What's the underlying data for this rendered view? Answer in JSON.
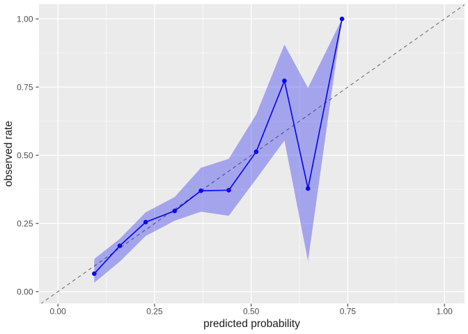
{
  "figure": {
    "kind": "ggplot-calibration-plot",
    "title": ""
  },
  "chart_data": {
    "type": "line",
    "title": "",
    "xlabel": "predicted probability",
    "ylabel": "observed rate",
    "xlim": [
      -0.049,
      1.052
    ],
    "ylim": [
      -0.043,
      1.054
    ],
    "x_tick_values": [
      0,
      0.25,
      0.5,
      0.75,
      1.0
    ],
    "x_tick_labels": [
      "0.00",
      "0.25",
      "0.50",
      "0.75",
      "1.00"
    ],
    "y_tick_values": [
      0,
      0.25,
      0.5,
      0.75,
      1.0
    ],
    "y_tick_labels": [
      "0.00",
      "0.25",
      "0.50",
      "0.75",
      "1.00"
    ],
    "grid": {
      "major": true,
      "minor": true,
      "legend": "none"
    },
    "reference_line": {
      "slope": 1,
      "intercept": 0,
      "style": "dashed"
    },
    "series": [
      {
        "name": "observed rate vs predicted probability",
        "x": [
          0.094,
          0.16,
          0.227,
          0.302,
          0.37,
          0.442,
          0.513,
          0.586,
          0.647,
          0.735
        ],
        "y": [
          0.066,
          0.168,
          0.255,
          0.296,
          0.37,
          0.372,
          0.513,
          0.773,
          0.378,
          1.0
        ],
        "ci_lower": [
          0.033,
          0.11,
          0.204,
          0.26,
          0.293,
          0.278,
          0.413,
          0.554,
          0.112,
          1.0
        ],
        "ci_upper": [
          0.12,
          0.194,
          0.291,
          0.347,
          0.454,
          0.487,
          0.65,
          0.906,
          0.747,
          1.0
        ]
      }
    ],
    "style": {
      "panel_bg": "#EBEBEB",
      "grid_color": "#FFFFFF",
      "line_color": "#0A0AEF",
      "point_color": "#0A0AEF",
      "ribbon_color": "rgba(0,0,238,0.30)",
      "reference_color": "#7C7C7C",
      "tick_label_color": "#4D4D4D",
      "axis_title_color": "#1A1A1A",
      "tick_mark_color": "#333333"
    }
  }
}
